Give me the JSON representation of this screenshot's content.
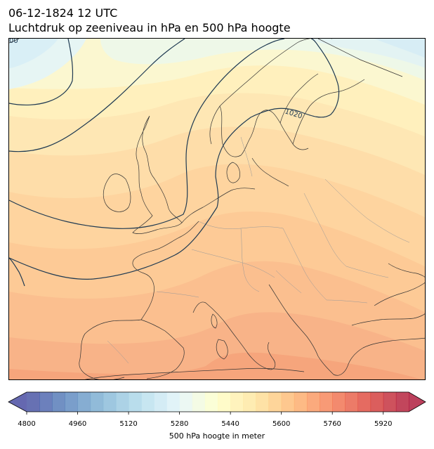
{
  "title": {
    "line1": "06-12-1824 12 UTC",
    "line2": "Luchtdruk op zeeniveau in hPa en 500 hPa hoogte"
  },
  "isobars": {
    "labels": [
      "1020",
      "00"
    ],
    "line_color": "#1f3a52"
  },
  "colorbar": {
    "label": "500 hPa hoogte in meter",
    "min": 4800,
    "max": 6000,
    "step": 40,
    "ticks": [
      4800,
      4960,
      5120,
      5280,
      5440,
      5600,
      5760,
      5920
    ],
    "extend": "both",
    "colormap": "RdYlBu_r"
  },
  "colors": {
    "land_outline": "#333333",
    "border": "#999999"
  }
}
